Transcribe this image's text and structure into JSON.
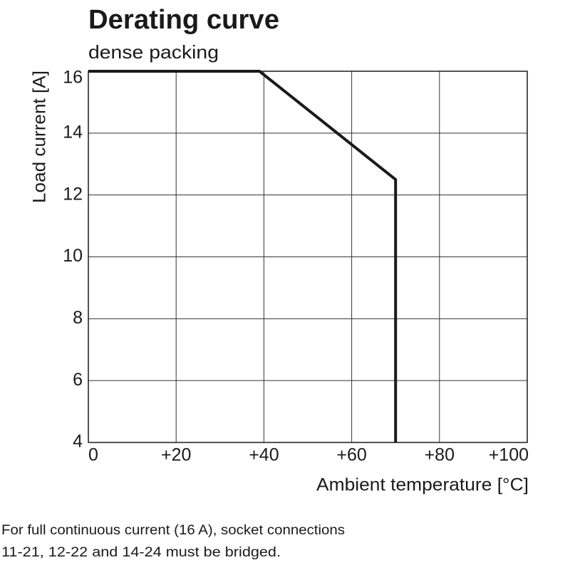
{
  "chart_data": {
    "type": "line",
    "title": "Derating curve",
    "subtitle": "dense packing",
    "x_label": "Ambient temperature [°C]",
    "y_label": "Load current [A]",
    "x": [
      0,
      39,
      70,
      70
    ],
    "values": [
      16,
      16,
      12.5,
      4
    ],
    "color": "#1a1a1a",
    "xlim": [
      0,
      100
    ],
    "xticks": [
      0,
      {
        "value": 20,
        "label": "+20"
      },
      {
        "value": 40,
        "label": "+40"
      },
      {
        "value": 60,
        "label": "+60"
      },
      {
        "value": 80,
        "label": "+80"
      },
      {
        "value": 100,
        "label": "+100"
      }
    ],
    "ylim": [
      4,
      16
    ],
    "yticks": [
      4,
      6,
      8,
      10,
      12,
      14,
      16
    ],
    "grid": true,
    "footnote": [
      "For full continuous current (16 A), socket connections",
      "11-21, 12-22 and 14-24 must be bridged."
    ]
  }
}
